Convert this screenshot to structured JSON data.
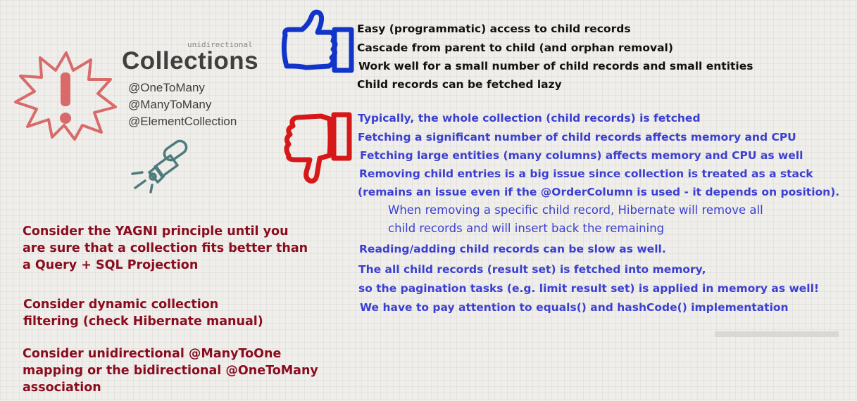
{
  "header": {
    "subtitle": "unidirectional",
    "title": "Collections",
    "annotations": [
      "@OneToMany",
      "@ManyToMany",
      "@ElementCollection"
    ]
  },
  "pros": [
    "Easy (programmatic) access to child records",
    "Cascade from parent to child (and orphan removal)",
    "Work well for a small number of child records and small entities",
    "Child records can be fetched lazy"
  ],
  "cons": [
    "Typically, the whole collection (child records) is fetched",
    "Fetching a significant number of child records affects memory and CPU",
    "Fetching large entities (many columns) affects memory and CPU as well",
    "Removing child entries is a big issue since collection is treated as a stack",
    "(remains an issue even if the @OrderColumn is used - it depends on position).",
    "When removing a specific child record, Hibernate will remove all",
    "child records and will insert back the remaining",
    "Reading/adding child records can be slow as well.",
    "The all child records (result set) is fetched into memory,",
    "so the pagination tasks (e.g. limit result set) is applied in memory as well!",
    "We have to pay attention to equals() and hashCode() implementation"
  ],
  "advice": [
    [
      "Consider the YAGNI principle until you",
      "are sure that a collection fits better than",
      "a Query + SQL Projection"
    ],
    [
      "Consider dynamic collection",
      "filtering (check Hibernate manual)"
    ],
    [
      "Consider unidirectional @ManyToOne",
      "mapping or the bidirectional @OneToMany",
      "association"
    ]
  ],
  "icons": {
    "warning": "warning-burst-icon",
    "flashlight": "flashlight-icon",
    "thumbs_up": "thumbs-up-icon",
    "thumbs_down": "thumbs-down-icon"
  },
  "colors": {
    "warning_red": "#d86a6a",
    "flashlight_teal": "#4e7c7c",
    "thumb_up_blue": "#1235c9",
    "thumb_down_red": "#d61818",
    "con_text_blue": "#3b3fd1",
    "advice_text_red": "#8a0c1e",
    "title_gray": "#3f3f3f"
  }
}
